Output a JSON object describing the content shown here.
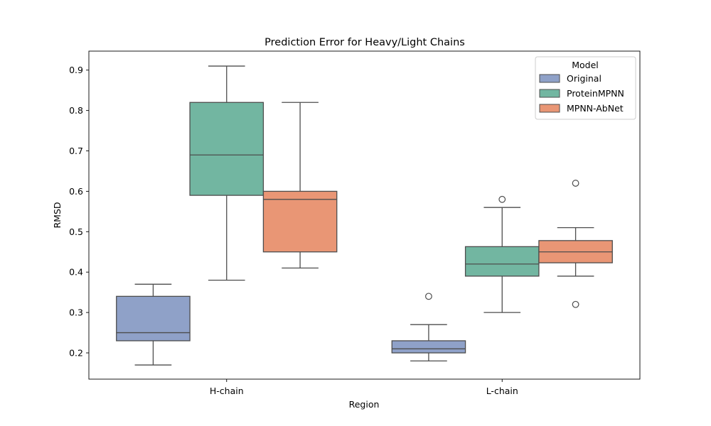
{
  "chart_data": {
    "type": "box",
    "title": "Prediction Error for Heavy/Light Chains",
    "xlabel": "Region",
    "ylabel": "RMSD",
    "categories": [
      "H-chain",
      "L-chain"
    ],
    "ylim": [
      0.135,
      0.947
    ],
    "yticks": [
      "0.2",
      "0.3",
      "0.4",
      "0.5",
      "0.6",
      "0.7",
      "0.8",
      "0.9"
    ],
    "grid": false,
    "legend": {
      "title": "Model",
      "position": "top-right"
    },
    "series": [
      {
        "name": "Original",
        "color": "#8fa1c8",
        "boxes": [
          {
            "category": "H-chain",
            "whisker_low": 0.17,
            "q1": 0.23,
            "median": 0.25,
            "q3": 0.34,
            "whisker_high": 0.37,
            "outliers": []
          },
          {
            "category": "L-chain",
            "whisker_low": 0.18,
            "q1": 0.2,
            "median": 0.21,
            "q3": 0.23,
            "whisker_high": 0.27,
            "outliers": [
              0.34
            ]
          }
        ]
      },
      {
        "name": "ProteinMPNN",
        "color": "#72b6a1",
        "boxes": [
          {
            "category": "H-chain",
            "whisker_low": 0.38,
            "q1": 0.59,
            "median": 0.69,
            "q3": 0.82,
            "whisker_high": 0.91,
            "outliers": []
          },
          {
            "category": "L-chain",
            "whisker_low": 0.3,
            "q1": 0.39,
            "median": 0.42,
            "q3": 0.463,
            "whisker_high": 0.56,
            "outliers": [
              0.58
            ]
          }
        ]
      },
      {
        "name": "MPNN-AbNet",
        "color": "#e99675",
        "boxes": [
          {
            "category": "H-chain",
            "whisker_low": 0.41,
            "q1": 0.45,
            "median": 0.58,
            "q3": 0.6,
            "whisker_high": 0.82,
            "outliers": []
          },
          {
            "category": "L-chain",
            "whisker_low": 0.39,
            "q1": 0.423,
            "median": 0.45,
            "q3": 0.478,
            "whisker_high": 0.51,
            "outliers": [
              0.62,
              0.32
            ]
          }
        ]
      }
    ]
  }
}
